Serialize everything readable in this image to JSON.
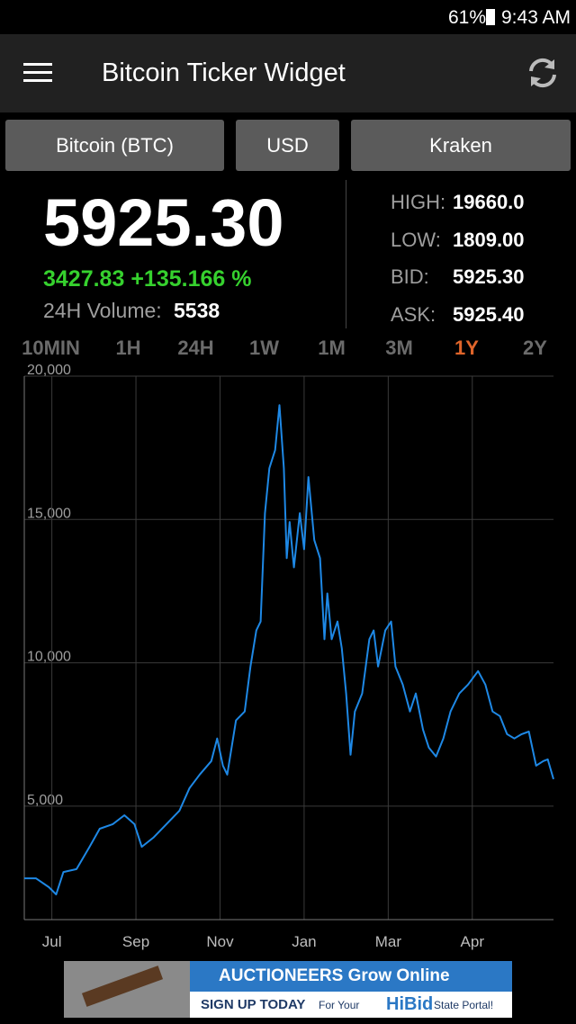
{
  "status_bar": {
    "battery": "61%",
    "time": "9:43 AM"
  },
  "app_bar": {
    "title": "Bitcoin Ticker Widget"
  },
  "selectors": [
    "Bitcoin (BTC)",
    "USD",
    "Kraken"
  ],
  "ticker": {
    "price": "5925.30",
    "change": "3427.83 +135.166 %",
    "volume_label": "24H Volume:",
    "volume": "5538",
    "stats": [
      {
        "label": "HIGH:",
        "value": "19660.0"
      },
      {
        "label": "LOW:",
        "value": "1809.00"
      },
      {
        "label": "BID:",
        "value": "5925.30"
      },
      {
        "label": "ASK:",
        "value": "5925.40"
      }
    ]
  },
  "tabs": [
    "10MIN",
    "1H",
    "24H",
    "1W",
    "1M",
    "3M",
    "1Y",
    "2Y"
  ],
  "chart_data": {
    "type": "line",
    "x": [
      0,
      8,
      17,
      22,
      27,
      36,
      45,
      52,
      61,
      69,
      76,
      81,
      89,
      98,
      107,
      114,
      121,
      129,
      133,
      137,
      140,
      146,
      152,
      156,
      160,
      163,
      166,
      169,
      173,
      176,
      179,
      181,
      183,
      186,
      190,
      193,
      196,
      200,
      204,
      207,
      209,
      212,
      216,
      219,
      222,
      225,
      228,
      233,
      238,
      241,
      244,
      249,
      253,
      256,
      261,
      266,
      270,
      275,
      279,
      284,
      289,
      294,
      300,
      306,
      313,
      318,
      323,
      328,
      333,
      338,
      343,
      348,
      353,
      358,
      361,
      365
    ],
    "series": [
      {
        "color": "#1e88e5",
        "values": [
          2480,
          2480,
          2170,
          1920,
          2700,
          2800,
          3580,
          4210,
          4370,
          4680,
          4370,
          3580,
          3900,
          4370,
          4840,
          5630,
          6100,
          6570,
          7360,
          6410,
          6100,
          7990,
          8300,
          9870,
          11130,
          11440,
          15220,
          16790,
          17420,
          18990,
          16790,
          13650,
          14910,
          13330,
          15220,
          13960,
          16480,
          14280,
          13650,
          10820,
          12420,
          10820,
          11440,
          10500,
          8930,
          6790,
          8300,
          8930,
          10820,
          11130,
          9870,
          11130,
          11440,
          9870,
          9240,
          8300,
          8930,
          7670,
          7040,
          6730,
          7360,
          8300,
          8930,
          9240,
          9710,
          9240,
          8300,
          8140,
          7510,
          7360,
          7510,
          7600,
          6410,
          6570,
          6630,
          5940
        ]
      }
    ],
    "xlim": [
      0,
      365
    ],
    "xticks": [
      {
        "value": 19,
        "label": "Jul"
      },
      {
        "value": 77,
        "label": "Sep"
      },
      {
        "value": 135,
        "label": "Nov"
      },
      {
        "value": 193,
        "label": "Jan"
      },
      {
        "value": 251,
        "label": "Mar"
      },
      {
        "value": 309,
        "label": "Apr"
      }
    ],
    "ylim": [
      1040,
      20000
    ],
    "yticks": [
      {
        "value": 5000,
        "label": "5,000"
      },
      {
        "value": 10000,
        "label": "10,000"
      },
      {
        "value": 15000,
        "label": "15,000"
      },
      {
        "value": 20000,
        "label": "20,000"
      }
    ],
    "grid": true
  },
  "ad": {
    "headline": "AUCTIONEERS Grow Online",
    "cta": "SIGN UP TODAY",
    "for_your": "For Your",
    "brand": "HiBid",
    "tail": "State Portal!"
  }
}
